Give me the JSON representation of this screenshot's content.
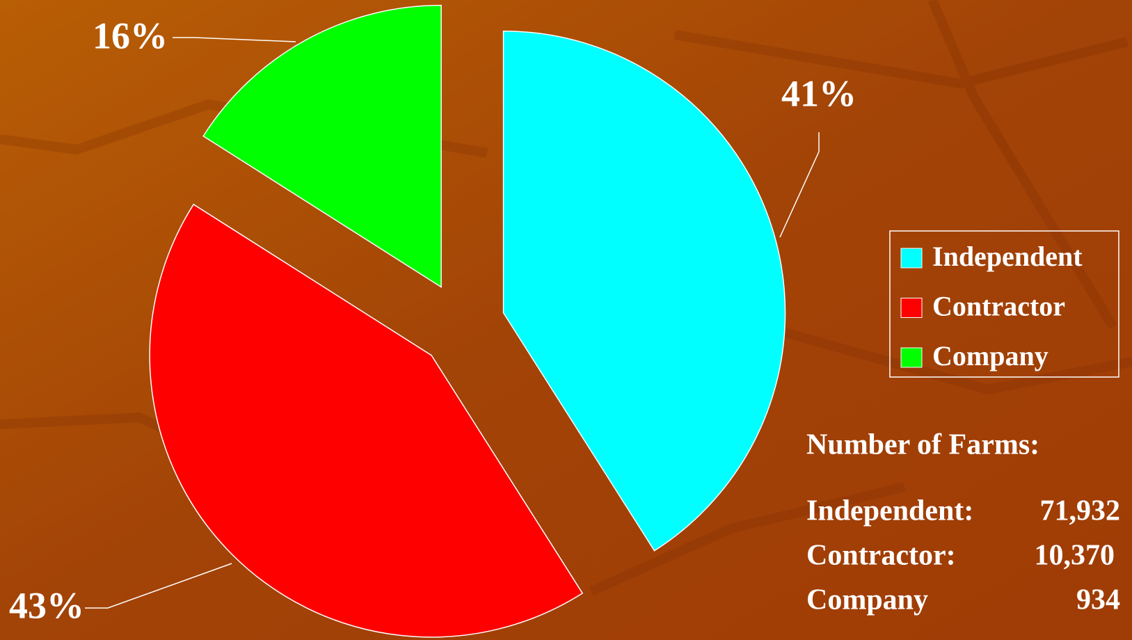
{
  "chart_data": {
    "type": "pie",
    "categories": [
      "Independent",
      "Contractor",
      "Company"
    ],
    "values": [
      41,
      43,
      16
    ],
    "value_labels": [
      "41%",
      "43%",
      "16%"
    ],
    "colors": [
      "#00ffff",
      "#ff0000",
      "#00ff00"
    ],
    "legend": "right",
    "annotations": {
      "title": "Number of Farms:",
      "rows": [
        [
          "Independent:",
          "71,932"
        ],
        [
          "Contractor:",
          "10,370"
        ],
        [
          "Company",
          "934"
        ]
      ]
    }
  }
}
